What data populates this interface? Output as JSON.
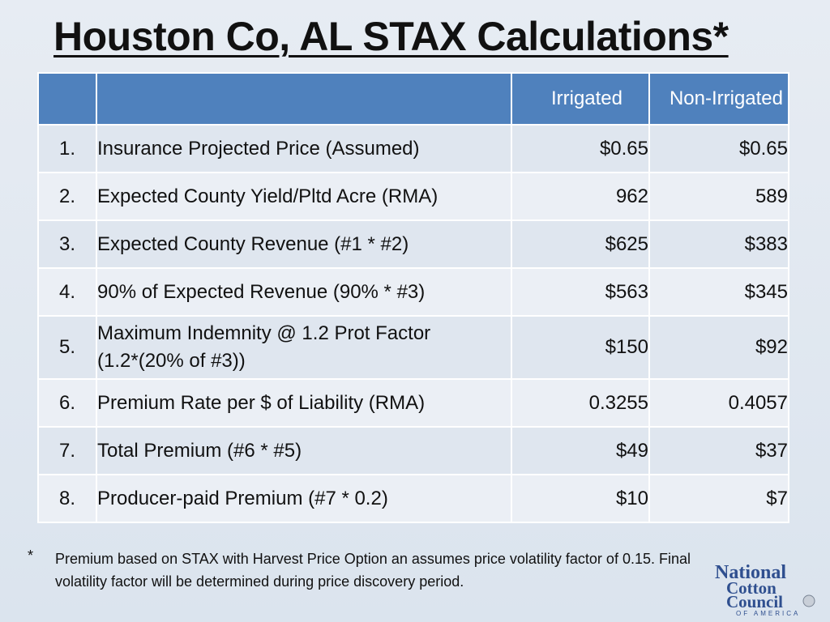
{
  "title": "Houston Co, AL STAX Calculations*",
  "table": {
    "headers": [
      "",
      "",
      "Irrigated",
      "Non-Irrigated"
    ],
    "rows": [
      {
        "num": "1.",
        "label": "Insurance Projected Price (Assumed)",
        "irrigated": "$0.65",
        "non_irrigated": "$0.65"
      },
      {
        "num": "2.",
        "label": "Expected County Yield/Pltd Acre (RMA)",
        "irrigated": "962",
        "non_irrigated": "589"
      },
      {
        "num": "3.",
        "label": "Expected County Revenue (#1 * #2)",
        "irrigated": "$625",
        "non_irrigated": "$383"
      },
      {
        "num": "4.",
        "label": "90% of Expected Revenue (90% * #3)",
        "irrigated": "$563",
        "non_irrigated": "$345"
      },
      {
        "num": "5.",
        "label": "Maximum Indemnity @ 1.2 Prot Factor",
        "label2": "(1.2*(20% of #3))",
        "irrigated": "$150",
        "non_irrigated": "$92"
      },
      {
        "num": "6.",
        "label": "Premium Rate per $ of Liability (RMA)",
        "irrigated": "0.3255",
        "non_irrigated": "0.4057"
      },
      {
        "num": "7.",
        "label": "Total Premium (#6 * #5)",
        "irrigated": "$49",
        "non_irrigated": "$37"
      },
      {
        "num": "8.",
        "label": "Producer-paid Premium (#7 * 0.2)",
        "irrigated": "$10",
        "non_irrigated": "$7"
      }
    ]
  },
  "footnote": {
    "marker": "*",
    "text": "Premium based on STAX with Harvest Price Option an assumes price volatility factor of 0.15. Final volatility factor will be determined during price discovery period."
  },
  "logo": {
    "line1": "National",
    "line2": "Cotton",
    "line3": "Council",
    "tagline": "OF AMERICA",
    "color": "#2f4f8f"
  }
}
